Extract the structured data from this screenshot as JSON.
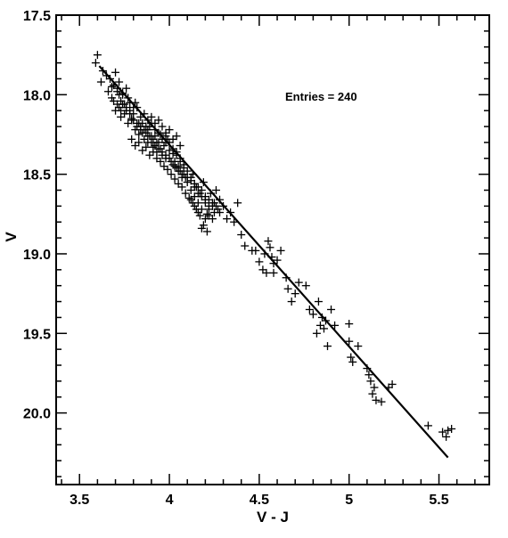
{
  "chart_data": {
    "type": "scatter",
    "xlabel": "V - J",
    "ylabel": "V",
    "xlim": [
      3.37,
      5.78
    ],
    "ylim": [
      17.5,
      20.45
    ],
    "y_inverted": true,
    "x_ticks": [
      3.5,
      4,
      4.5,
      5,
      5.5
    ],
    "x_tick_labels": [
      "3.5",
      "4",
      "4.5",
      "5",
      "5.5"
    ],
    "y_ticks": [
      17.5,
      18.0,
      18.5,
      19.0,
      19.5,
      20.0
    ],
    "y_tick_labels": [
      "17.5",
      "18.0",
      "18.5",
      "19.0",
      "19.5",
      "20.0"
    ],
    "annotation": "Entries = 240",
    "marker": "cross",
    "fit_line": {
      "x": [
        3.61,
        5.55
      ],
      "y": [
        17.82,
        20.28
      ]
    },
    "grid": false,
    "points": [
      [
        3.6,
        17.75
      ],
      [
        3.59,
        17.8
      ],
      [
        3.62,
        17.92
      ],
      [
        3.65,
        17.88
      ],
      [
        3.68,
        17.95
      ],
      [
        3.7,
        17.86
      ],
      [
        3.72,
        17.92
      ],
      [
        3.71,
        17.98
      ],
      [
        3.73,
        18.04
      ],
      [
        3.74,
        17.99
      ],
      [
        3.75,
        18.06
      ],
      [
        3.76,
        18.1
      ],
      [
        3.73,
        18.14
      ],
      [
        3.72,
        18.08
      ],
      [
        3.77,
        18.02
      ],
      [
        3.78,
        18.12
      ],
      [
        3.8,
        18.08
      ],
      [
        3.79,
        18.15
      ],
      [
        3.82,
        18.2
      ],
      [
        3.81,
        18.05
      ],
      [
        3.83,
        18.25
      ],
      [
        3.84,
        18.22
      ],
      [
        3.85,
        18.18
      ],
      [
        3.86,
        18.28
      ],
      [
        3.87,
        18.24
      ],
      [
        3.88,
        18.3
      ],
      [
        3.89,
        18.2
      ],
      [
        3.9,
        18.26
      ],
      [
        3.91,
        18.33
      ],
      [
        3.92,
        18.22
      ],
      [
        3.93,
        18.36
      ],
      [
        3.94,
        18.3
      ],
      [
        3.95,
        18.25
      ],
      [
        3.96,
        18.38
      ],
      [
        3.97,
        18.32
      ],
      [
        3.98,
        18.4
      ],
      [
        3.99,
        18.28
      ],
      [
        4.0,
        18.35
      ],
      [
        4.01,
        18.42
      ],
      [
        4.02,
        18.37
      ],
      [
        4.03,
        18.45
      ],
      [
        4.04,
        18.38
      ],
      [
        4.05,
        18.48
      ],
      [
        4.06,
        18.42
      ],
      [
        4.07,
        18.52
      ],
      [
        4.08,
        18.46
      ],
      [
        4.1,
        18.55
      ],
      [
        4.12,
        18.6
      ],
      [
        4.13,
        18.5
      ],
      [
        4.14,
        18.64
      ],
      [
        4.15,
        18.58
      ],
      [
        4.16,
        18.68
      ],
      [
        4.17,
        18.62
      ],
      [
        4.18,
        18.72
      ],
      [
        4.19,
        18.55
      ],
      [
        4.2,
        18.66
      ],
      [
        4.21,
        18.75
      ],
      [
        4.22,
        18.7
      ],
      [
        4.23,
        18.62
      ],
      [
        4.24,
        18.78
      ],
      [
        4.25,
        18.68
      ],
      [
        4.26,
        18.6
      ],
      [
        4.27,
        18.72
      ],
      [
        4.28,
        18.66
      ],
      [
        4.3,
        18.7
      ],
      [
        4.32,
        18.78
      ],
      [
        4.34,
        18.74
      ],
      [
        4.36,
        18.8
      ],
      [
        4.38,
        18.68
      ],
      [
        4.4,
        18.88
      ],
      [
        3.66,
        17.98
      ],
      [
        3.68,
        18.02
      ],
      [
        3.7,
        18.1
      ],
      [
        3.74,
        18.0
      ],
      [
        3.76,
        17.96
      ],
      [
        3.78,
        18.05
      ],
      [
        3.8,
        18.12
      ],
      [
        3.82,
        18.08
      ],
      [
        3.84,
        18.14
      ],
      [
        3.86,
        18.12
      ],
      [
        3.88,
        18.16
      ],
      [
        3.9,
        18.14
      ],
      [
        3.92,
        18.18
      ],
      [
        3.94,
        18.16
      ],
      [
        3.96,
        18.2
      ],
      [
        3.98,
        18.24
      ],
      [
        4.0,
        18.22
      ],
      [
        4.02,
        18.28
      ],
      [
        4.04,
        18.26
      ],
      [
        4.06,
        18.32
      ],
      [
        3.79,
        18.28
      ],
      [
        3.81,
        18.32
      ],
      [
        3.83,
        18.3
      ],
      [
        3.85,
        18.35
      ],
      [
        3.87,
        18.33
      ],
      [
        3.89,
        18.38
      ],
      [
        3.91,
        18.36
      ],
      [
        3.93,
        18.4
      ],
      [
        3.95,
        18.42
      ],
      [
        3.97,
        18.45
      ],
      [
        3.99,
        18.47
      ],
      [
        4.01,
        18.5
      ],
      [
        4.03,
        18.53
      ],
      [
        4.05,
        18.56
      ],
      [
        4.07,
        18.58
      ],
      [
        4.09,
        18.62
      ],
      [
        4.11,
        18.65
      ],
      [
        4.13,
        18.68
      ],
      [
        4.15,
        18.72
      ],
      [
        4.17,
        18.76
      ],
      [
        4.19,
        18.82
      ],
      [
        4.21,
        18.86
      ],
      [
        4.18,
        18.84
      ],
      [
        4.22,
        18.76
      ],
      [
        4.24,
        18.7
      ],
      [
        4.25,
        18.74
      ],
      [
        4.2,
        18.78
      ],
      [
        4.16,
        18.74
      ],
      [
        4.14,
        18.7
      ],
      [
        4.12,
        18.66
      ],
      [
        3.88,
        18.22
      ],
      [
        3.9,
        18.18
      ],
      [
        3.92,
        18.26
      ],
      [
        3.94,
        18.24
      ],
      [
        3.96,
        18.28
      ],
      [
        3.98,
        18.3
      ],
      [
        3.95,
        18.34
      ],
      [
        3.93,
        18.3
      ],
      [
        3.91,
        18.28
      ],
      [
        3.89,
        18.26
      ],
      [
        3.87,
        18.2
      ],
      [
        3.85,
        18.24
      ],
      [
        3.83,
        18.18
      ],
      [
        3.81,
        18.22
      ],
      [
        3.79,
        18.16
      ],
      [
        3.77,
        18.18
      ],
      [
        3.75,
        18.12
      ],
      [
        3.73,
        18.1
      ],
      [
        3.71,
        18.06
      ],
      [
        3.69,
        18.04
      ],
      [
        3.98,
        18.26
      ],
      [
        4.0,
        18.3
      ],
      [
        4.02,
        18.34
      ],
      [
        4.04,
        18.36
      ],
      [
        4.06,
        18.4
      ],
      [
        4.08,
        18.44
      ],
      [
        4.1,
        18.48
      ],
      [
        4.12,
        18.52
      ],
      [
        4.14,
        18.56
      ],
      [
        4.16,
        18.58
      ],
      [
        4.18,
        18.6
      ],
      [
        4.2,
        18.64
      ],
      [
        4.22,
        18.66
      ],
      [
        4.24,
        18.68
      ],
      [
        4.26,
        18.7
      ],
      [
        4.28,
        18.74
      ],
      [
        4.05,
        18.45
      ],
      [
        4.03,
        18.42
      ],
      [
        4.07,
        18.5
      ],
      [
        4.09,
        18.52
      ],
      [
        4.42,
        18.95
      ],
      [
        4.46,
        18.98
      ],
      [
        4.5,
        19.05
      ],
      [
        4.52,
        19.1
      ],
      [
        4.54,
        19.12
      ],
      [
        4.55,
        18.92
      ],
      [
        4.56,
        18.96
      ],
      [
        4.57,
        19.02
      ],
      [
        4.58,
        19.06
      ],
      [
        4.6,
        19.04
      ],
      [
        4.62,
        18.98
      ],
      [
        4.65,
        19.15
      ],
      [
        4.66,
        19.22
      ],
      [
        4.7,
        19.25
      ],
      [
        4.72,
        19.18
      ],
      [
        4.76,
        19.2
      ],
      [
        4.78,
        19.35
      ],
      [
        4.8,
        19.38
      ],
      [
        4.83,
        19.3
      ],
      [
        4.84,
        19.45
      ],
      [
        4.85,
        19.4
      ],
      [
        4.86,
        19.47
      ],
      [
        4.87,
        19.42
      ],
      [
        4.88,
        19.58
      ],
      [
        4.82,
        19.5
      ],
      [
        4.9,
        19.35
      ],
      [
        5.0,
        19.55
      ],
      [
        5.01,
        19.65
      ],
      [
        5.02,
        19.68
      ],
      [
        5.05,
        19.58
      ],
      [
        5.0,
        19.44
      ],
      [
        5.1,
        19.72
      ],
      [
        5.11,
        19.76
      ],
      [
        5.12,
        19.8
      ],
      [
        5.14,
        19.84
      ],
      [
        5.13,
        19.88
      ],
      [
        5.15,
        19.92
      ],
      [
        5.18,
        19.93
      ],
      [
        5.22,
        19.84
      ],
      [
        5.24,
        19.82
      ],
      [
        5.44,
        20.08
      ],
      [
        5.52,
        20.12
      ],
      [
        5.54,
        20.15
      ],
      [
        5.55,
        20.11
      ],
      [
        5.57,
        20.1
      ],
      [
        4.53,
        19.0
      ],
      [
        4.48,
        18.98
      ],
      [
        4.58,
        19.12
      ],
      [
        4.68,
        19.3
      ],
      [
        4.92,
        19.45
      ],
      [
        3.63,
        17.85
      ],
      [
        3.67,
        17.9
      ],
      [
        3.69,
        17.94
      ],
      [
        3.71,
        17.96
      ],
      [
        3.72,
        18.0
      ],
      [
        3.74,
        18.06
      ],
      [
        3.76,
        18.08
      ],
      [
        3.78,
        18.1
      ],
      [
        3.8,
        18.16
      ],
      [
        3.82,
        18.18
      ],
      [
        3.84,
        18.2
      ],
      [
        3.86,
        18.22
      ],
      [
        3.88,
        18.26
      ],
      [
        3.9,
        18.3
      ],
      [
        3.92,
        18.32
      ],
      [
        3.94,
        18.34
      ],
      [
        3.96,
        18.36
      ],
      [
        3.98,
        18.38
      ],
      [
        4.0,
        18.4
      ],
      [
        4.02,
        18.44
      ],
      [
        4.04,
        18.46
      ],
      [
        4.06,
        18.48
      ],
      [
        4.08,
        18.5
      ],
      [
        4.1,
        18.52
      ],
      [
        4.12,
        18.54
      ],
      [
        4.14,
        18.58
      ],
      [
        4.16,
        18.62
      ],
      [
        4.18,
        18.64
      ],
      [
        4.2,
        18.68
      ],
      [
        4.22,
        18.72
      ]
    ]
  }
}
